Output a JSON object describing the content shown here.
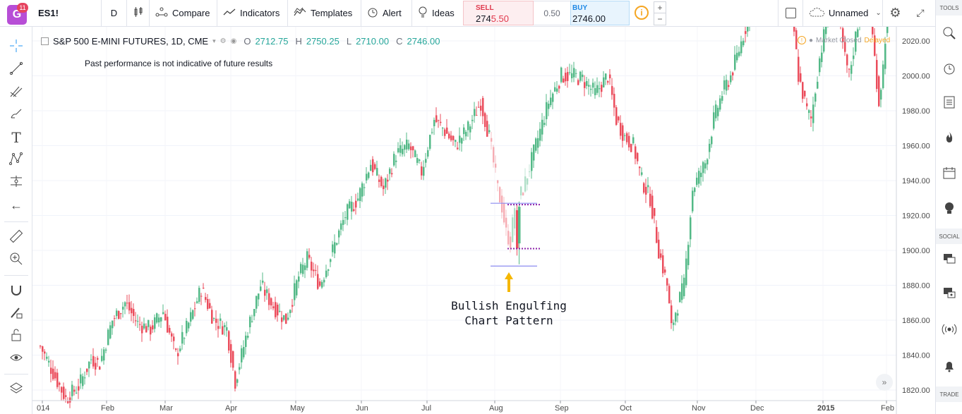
{
  "toolbar": {
    "logo_badge": "11",
    "symbol": "ES1!",
    "interval": "D",
    "compare_label": "Compare",
    "indicators_label": "Indicators",
    "templates_label": "Templates",
    "alert_label": "Alert",
    "ideas_label": "Ideas",
    "sell_label": "SELL",
    "sell_price_main": "274",
    "sell_price_hl": "5.50",
    "spread": "0.50",
    "buy_label": "BUY",
    "buy_price": "2746.00",
    "info_icon": "i",
    "plus": "+",
    "minus": "−",
    "layout_name": "Unnamed"
  },
  "right_panel": {
    "tools_header": "TOOLS",
    "social_header": "SOCIAL",
    "trade_header": "TRADE"
  },
  "legend": {
    "title": "S&P 500 E-MINI FUTURES, 1D, CME",
    "o_label": "O",
    "o_value": "2712.75",
    "h_label": "H",
    "h_value": "2750.25",
    "l_label": "L",
    "l_value": "2710.00",
    "c_label": "C",
    "c_value": "2746.00"
  },
  "market_status": {
    "closed": "Market Closed",
    "delayed": "Delayed"
  },
  "disclaimer": "Past performance is not indicative of future results",
  "annotation": {
    "line1": "Bullish Engulfing",
    "line2": "Chart Pattern"
  },
  "colors": {
    "up": "#53b987",
    "down": "#eb4d5c",
    "accent": "#2196f3",
    "purple_dotted": "#8e24aa",
    "blue_line": "#8c8cf0",
    "arrow": "#f5b700"
  },
  "chart_data": {
    "type": "candlestick",
    "y_ticks": [
      1820,
      1840,
      1860,
      1880,
      1900,
      1920,
      1940,
      1960,
      1980,
      2000,
      2020
    ],
    "x_ticks": [
      "014",
      "Feb",
      "Mar",
      "Apr",
      "May",
      "Jun",
      "Jul",
      "Aug",
      "Sep",
      "Oct",
      "Nov",
      "Dec",
      "2015",
      "Feb"
    ],
    "ylim": [
      1812,
      2030
    ],
    "waypoints": [
      [
        0,
        1845
      ],
      [
        6,
        1830
      ],
      [
        12,
        1815
      ],
      [
        18,
        1822
      ],
      [
        24,
        1838
      ],
      [
        28,
        1835
      ],
      [
        34,
        1860
      ],
      [
        40,
        1870
      ],
      [
        46,
        1858
      ],
      [
        52,
        1855
      ],
      [
        58,
        1865
      ],
      [
        64,
        1840
      ],
      [
        70,
        1858
      ],
      [
        76,
        1878
      ],
      [
        82,
        1860
      ],
      [
        88,
        1855
      ],
      [
        92,
        1825
      ],
      [
        98,
        1855
      ],
      [
        104,
        1880
      ],
      [
        110,
        1868
      ],
      [
        116,
        1860
      ],
      [
        122,
        1885
      ],
      [
        126,
        1895
      ],
      [
        132,
        1880
      ],
      [
        138,
        1900
      ],
      [
        144,
        1920
      ],
      [
        150,
        1930
      ],
      [
        156,
        1950
      ],
      [
        162,
        1935
      ],
      [
        168,
        1955
      ],
      [
        174,
        1960
      ],
      [
        180,
        1945
      ],
      [
        186,
        1975
      ],
      [
        190,
        1970
      ],
      [
        196,
        1960
      ],
      [
        202,
        1970
      ],
      [
        208,
        1985
      ],
      [
        212,
        1965
      ],
      [
        216,
        1935
      ],
      [
        218,
        1925
      ],
      [
        220,
        1910
      ],
      [
        222,
        1905
      ],
      [
        224,
        1925
      ],
      [
        228,
        1935
      ],
      [
        234,
        1960
      ],
      [
        240,
        1985
      ],
      [
        246,
        2000
      ],
      [
        252,
        2000
      ],
      [
        256,
        1998
      ],
      [
        262,
        1990
      ],
      [
        268,
        2000
      ],
      [
        272,
        1975
      ],
      [
        276,
        1965
      ],
      [
        280,
        1960
      ],
      [
        284,
        1940
      ],
      [
        288,
        1930
      ],
      [
        292,
        1900
      ],
      [
        296,
        1880
      ],
      [
        298,
        1855
      ],
      [
        300,
        1865
      ],
      [
        304,
        1880
      ],
      [
        308,
        1935
      ],
      [
        314,
        1950
      ],
      [
        318,
        1975
      ],
      [
        322,
        1990
      ],
      [
        326,
        2000
      ],
      [
        330,
        2015
      ],
      [
        334,
        2032
      ],
      [
        336,
        2040
      ],
      [
        340,
        2045
      ],
      [
        344,
        2050
      ],
      [
        348,
        2055
      ],
      [
        352,
        2050
      ],
      [
        354,
        2045
      ],
      [
        356,
        2025
      ],
      [
        358,
        2000
      ],
      [
        362,
        1980
      ],
      [
        364,
        1975
      ],
      [
        368,
        2010
      ],
      [
        372,
        2035
      ],
      [
        376,
        2040
      ],
      [
        380,
        2010
      ],
      [
        382,
        2000
      ],
      [
        386,
        2030
      ],
      [
        388,
        2040
      ],
      [
        390,
        2040
      ],
      [
        392,
        2035
      ],
      [
        394,
        2010
      ],
      [
        396,
        1985
      ],
      [
        398,
        2005
      ],
      [
        400,
        2040
      ],
      [
        402,
        2045
      ],
      [
        404,
        2040
      ]
    ],
    "engulfing": {
      "bearish": {
        "open": 1923,
        "close": 1901,
        "high": 1926,
        "low": 1897
      },
      "bullish": {
        "open": 1904,
        "close": 1925,
        "high": 1928,
        "low": 1892
      },
      "upper_line": 1927,
      "lower_line": 1891
    }
  }
}
